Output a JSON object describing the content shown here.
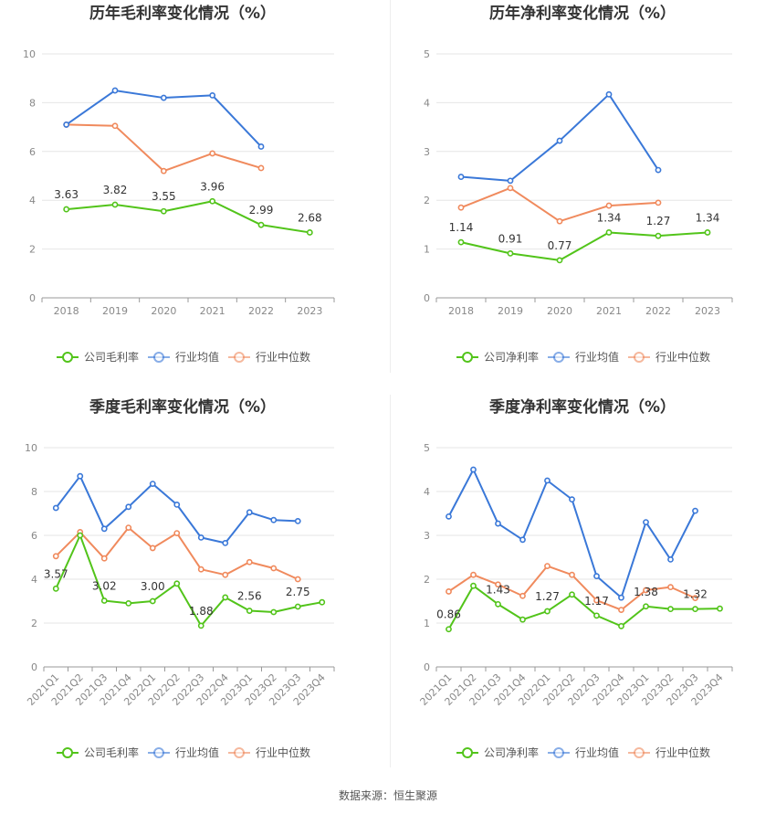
{
  "colors": {
    "company": "#52c41a",
    "industry_avg": "#3a78d8",
    "industry_median": "#f08a5d",
    "grid": "#e6e6e6",
    "axis": "#999999",
    "title": "#333333",
    "label": "#333333"
  },
  "footer": {
    "source": "数据来源：恒生聚源"
  },
  "chart_data": [
    {
      "id": "annual-gross",
      "type": "line",
      "title": "历年毛利率变化情况（%）",
      "categories": [
        "2018",
        "2019",
        "2020",
        "2021",
        "2022",
        "2023"
      ],
      "ylim": [
        0,
        10
      ],
      "yticks": [
        0,
        2,
        4,
        6,
        8,
        10
      ],
      "grid": true,
      "legend_position": "bottom",
      "series": [
        {
          "name": "公司毛利率",
          "color_key": "company",
          "values": [
            3.63,
            3.82,
            3.55,
            3.96,
            2.99,
            2.68
          ],
          "labels": [
            "3.63",
            "3.82",
            "3.55",
            "3.96",
            "2.99",
            "2.68"
          ]
        },
        {
          "name": "行业均值",
          "color_key": "industry_avg",
          "values": [
            7.1,
            8.5,
            8.2,
            8.3,
            6.2,
            null
          ]
        },
        {
          "name": "行业中位数",
          "color_key": "industry_median",
          "values": [
            7.1,
            7.05,
            5.2,
            5.92,
            5.32,
            null
          ]
        }
      ]
    },
    {
      "id": "annual-net",
      "type": "line",
      "title": "历年净利率变化情况（%）",
      "categories": [
        "2018",
        "2019",
        "2020",
        "2021",
        "2022",
        "2023"
      ],
      "ylim": [
        0,
        5
      ],
      "yticks": [
        0,
        1,
        2,
        3,
        4,
        5
      ],
      "grid": true,
      "legend_position": "bottom",
      "series": [
        {
          "name": "公司净利率",
          "color_key": "company",
          "values": [
            1.14,
            0.91,
            0.77,
            1.34,
            1.27,
            1.34
          ],
          "labels": [
            "1.14",
            "0.91",
            "0.77",
            "1.34",
            "1.27",
            "1.34"
          ]
        },
        {
          "name": "行业均值",
          "color_key": "industry_avg",
          "values": [
            2.48,
            2.4,
            3.22,
            4.17,
            2.62,
            null
          ]
        },
        {
          "name": "行业中位数",
          "color_key": "industry_median",
          "values": [
            1.85,
            2.25,
            1.57,
            1.89,
            1.95,
            null
          ]
        }
      ]
    },
    {
      "id": "quarterly-gross",
      "type": "line",
      "title": "季度毛利率变化情况（%）",
      "categories": [
        "2021Q1",
        "2021Q2",
        "2021Q3",
        "2021Q4",
        "2022Q1",
        "2022Q2",
        "2022Q3",
        "2022Q4",
        "2023Q1",
        "2023Q2",
        "2023Q3",
        "2023Q4"
      ],
      "ylim": [
        0,
        10
      ],
      "yticks": [
        0,
        2,
        4,
        6,
        8,
        10
      ],
      "grid": true,
      "legend_position": "bottom",
      "series": [
        {
          "name": "公司毛利率",
          "color_key": "company",
          "values": [
            3.57,
            6.0,
            3.02,
            2.9,
            3.0,
            3.8,
            1.88,
            3.17,
            2.56,
            2.5,
            2.75,
            2.95
          ],
          "labels": [
            "3.57",
            null,
            "3.02",
            null,
            "3.00",
            null,
            "1.88",
            null,
            "2.56",
            null,
            "2.75",
            null
          ]
        },
        {
          "name": "行业均值",
          "color_key": "industry_avg",
          "values": [
            7.25,
            8.7,
            6.3,
            7.3,
            8.35,
            7.4,
            5.9,
            5.65,
            7.05,
            6.7,
            6.65,
            null
          ]
        },
        {
          "name": "行业中位数",
          "color_key": "industry_median",
          "values": [
            5.05,
            6.15,
            4.95,
            6.35,
            5.42,
            6.1,
            4.45,
            4.2,
            4.78,
            4.5,
            4.0,
            null
          ]
        }
      ]
    },
    {
      "id": "quarterly-net",
      "type": "line",
      "title": "季度净利率变化情况（%）",
      "categories": [
        "2021Q1",
        "2021Q2",
        "2021Q3",
        "2021Q4",
        "2022Q1",
        "2022Q2",
        "2022Q3",
        "2022Q4",
        "2023Q1",
        "2023Q2",
        "2023Q3",
        "2023Q4"
      ],
      "ylim": [
        0,
        5
      ],
      "yticks": [
        0,
        1,
        2,
        3,
        4,
        5
      ],
      "grid": true,
      "legend_position": "bottom",
      "series": [
        {
          "name": "公司净利率",
          "color_key": "company",
          "values": [
            0.86,
            1.85,
            1.43,
            1.08,
            1.27,
            1.65,
            1.17,
            0.93,
            1.38,
            1.32,
            1.32,
            1.33
          ],
          "labels": [
            "0.86",
            null,
            "1.43",
            null,
            "1.27",
            null,
            "1.17",
            null,
            "1.38",
            null,
            "1.32",
            null
          ]
        },
        {
          "name": "行业均值",
          "color_key": "industry_avg",
          "values": [
            3.43,
            4.5,
            3.27,
            2.9,
            4.25,
            3.82,
            2.07,
            1.58,
            3.3,
            2.45,
            3.56,
            null
          ]
        },
        {
          "name": "行业中位数",
          "color_key": "industry_median",
          "values": [
            1.72,
            2.1,
            1.88,
            1.62,
            2.3,
            2.1,
            1.52,
            1.3,
            1.75,
            1.82,
            1.57,
            null
          ]
        }
      ]
    }
  ]
}
